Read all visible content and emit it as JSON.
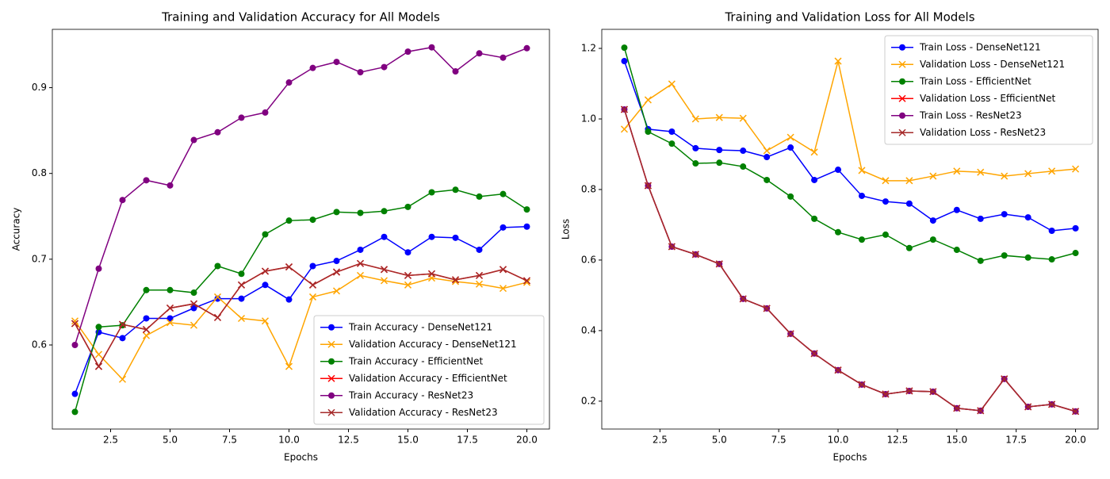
{
  "chart_data": [
    {
      "type": "line",
      "title": "Training and Validation Accuracy for All Models",
      "xlabel": "Epochs",
      "ylabel": "Accuracy",
      "x": [
        1,
        2,
        3,
        4,
        5,
        6,
        7,
        8,
        9,
        10,
        11,
        12,
        13,
        14,
        15,
        16,
        17,
        18,
        19,
        20
      ],
      "xlim": [
        0.05,
        20.95
      ],
      "xticks": [
        2.5,
        {
          "value": 5,
          "label": "5.0"
        },
        7.5,
        {
          "value": 10,
          "label": "10.0"
        },
        12.5,
        {
          "value": 15,
          "label": "15.0"
        },
        17.5,
        {
          "value": 20,
          "label": "20.0"
        }
      ],
      "ylim": [
        0.502,
        0.968
      ],
      "yticks": [
        0.6,
        0.7,
        0.8,
        0.9
      ],
      "grid": false,
      "legend": "lower right",
      "series": [
        {
          "name": "Train Accuracy - DenseNet121",
          "color": "#0000ff",
          "marker": "o",
          "values": [
            0.543,
            0.615,
            0.608,
            0.631,
            0.631,
            0.643,
            0.654,
            0.654,
            0.67,
            0.653,
            0.692,
            0.698,
            0.711,
            0.726,
            0.708,
            0.726,
            0.725,
            0.711,
            0.737,
            0.738
          ]
        },
        {
          "name": "Validation Accuracy - DenseNet121",
          "color": "#ffa500",
          "marker": "x",
          "values": [
            0.628,
            0.589,
            0.56,
            0.611,
            0.626,
            0.623,
            0.656,
            0.631,
            0.628,
            0.575,
            0.656,
            0.663,
            0.681,
            0.675,
            0.67,
            0.678,
            0.674,
            0.671,
            0.666,
            0.673
          ]
        },
        {
          "name": "Train Accuracy - EfficientNet",
          "color": "#008000",
          "marker": "o",
          "values": [
            0.522,
            0.621,
            0.623,
            0.664,
            0.664,
            0.661,
            0.692,
            0.683,
            0.729,
            0.745,
            0.746,
            0.755,
            0.754,
            0.756,
            0.761,
            0.778,
            0.781,
            0.773,
            0.776,
            0.758
          ]
        },
        {
          "name": "Validation Accuracy - EfficientNet",
          "color": "#ff0000",
          "marker": "x",
          "values": [
            0.625,
            0.575,
            0.624,
            0.618,
            0.643,
            0.648,
            0.632,
            0.67,
            0.686,
            0.691,
            0.67,
            0.685,
            0.695,
            0.688,
            0.681,
            0.683,
            0.676,
            0.681,
            0.688,
            0.675
          ]
        },
        {
          "name": "Train Accuracy - ResNet23",
          "color": "#800080",
          "marker": "o",
          "values": [
            0.6,
            0.689,
            0.769,
            0.792,
            0.786,
            0.839,
            0.848,
            0.865,
            0.871,
            0.906,
            0.923,
            0.93,
            0.918,
            0.924,
            0.942,
            0.947,
            0.919,
            0.94,
            0.935,
            0.946
          ]
        },
        {
          "name": "Validation Accuracy - ResNet23",
          "color": "#a52a2a",
          "marker": "x",
          "values": [
            0.625,
            0.575,
            0.624,
            0.618,
            0.643,
            0.648,
            0.632,
            0.67,
            0.686,
            0.691,
            0.67,
            0.685,
            0.695,
            0.688,
            0.681,
            0.683,
            0.676,
            0.681,
            0.688,
            0.675
          ]
        }
      ]
    },
    {
      "type": "line",
      "title": "Training and Validation Loss for All Models",
      "xlabel": "Epochs",
      "ylabel": "Loss",
      "x": [
        1,
        2,
        3,
        4,
        5,
        6,
        7,
        8,
        9,
        10,
        11,
        12,
        13,
        14,
        15,
        16,
        17,
        18,
        19,
        20
      ],
      "xlim": [
        0.05,
        20.95
      ],
      "xticks": [
        2.5,
        {
          "value": 5,
          "label": "5.0"
        },
        7.5,
        {
          "value": 10,
          "label": "10.0"
        },
        12.5,
        {
          "value": 15,
          "label": "15.0"
        },
        17.5,
        {
          "value": 20,
          "label": "20.0"
        }
      ],
      "ylim": [
        0.121,
        1.254
      ],
      "yticks": [
        0.2,
        0.4,
        0.6,
        0.8,
        {
          "value": 1,
          "label": "1.0"
        },
        1.2
      ],
      "grid": false,
      "legend": "upper right",
      "series": [
        {
          "name": "Train Loss - DenseNet121",
          "color": "#0000ff",
          "marker": "o",
          "values": [
            1.164,
            0.971,
            0.964,
            0.917,
            0.912,
            0.91,
            0.892,
            0.919,
            0.827,
            0.856,
            0.782,
            0.766,
            0.76,
            0.712,
            0.742,
            0.717,
            0.73,
            0.721,
            0.683,
            0.69
          ]
        },
        {
          "name": "Validation Loss - DenseNet121",
          "color": "#ffa500",
          "marker": "x",
          "values": [
            0.971,
            1.054,
            1.099,
            1.0,
            1.004,
            1.002,
            0.91,
            0.948,
            0.906,
            1.164,
            0.854,
            0.825,
            0.825,
            0.838,
            0.852,
            0.849,
            0.838,
            0.845,
            0.852,
            0.858
          ]
        },
        {
          "name": "Train Loss - EfficientNet",
          "color": "#008000",
          "marker": "o",
          "values": [
            1.202,
            0.964,
            0.93,
            0.874,
            0.876,
            0.865,
            0.827,
            0.78,
            0.717,
            0.679,
            0.658,
            0.672,
            0.634,
            0.658,
            0.629,
            0.598,
            0.613,
            0.607,
            0.602,
            0.62
          ]
        },
        {
          "name": "Validation Loss - EfficientNet",
          "color": "#ff0000",
          "marker": "x",
          "values": [
            1.027,
            0.811,
            0.638,
            0.616,
            0.589,
            0.49,
            0.463,
            0.391,
            0.335,
            0.288,
            0.247,
            0.22,
            0.229,
            0.227,
            0.18,
            0.173,
            0.263,
            0.184,
            0.191,
            0.171
          ]
        },
        {
          "name": "Train Loss - ResNet23",
          "color": "#800080",
          "marker": "o",
          "values": [
            1.027,
            0.811,
            0.638,
            0.616,
            0.589,
            0.49,
            0.463,
            0.391,
            0.335,
            0.288,
            0.247,
            0.22,
            0.229,
            0.227,
            0.18,
            0.173,
            0.263,
            0.184,
            0.191,
            0.171
          ]
        },
        {
          "name": "Validation Loss - ResNet23",
          "color": "#a52a2a",
          "marker": "x",
          "values": [
            1.027,
            0.811,
            0.638,
            0.616,
            0.589,
            0.49,
            0.463,
            0.391,
            0.335,
            0.288,
            0.247,
            0.22,
            0.229,
            0.227,
            0.18,
            0.173,
            0.263,
            0.184,
            0.191,
            0.171
          ]
        }
      ]
    }
  ]
}
